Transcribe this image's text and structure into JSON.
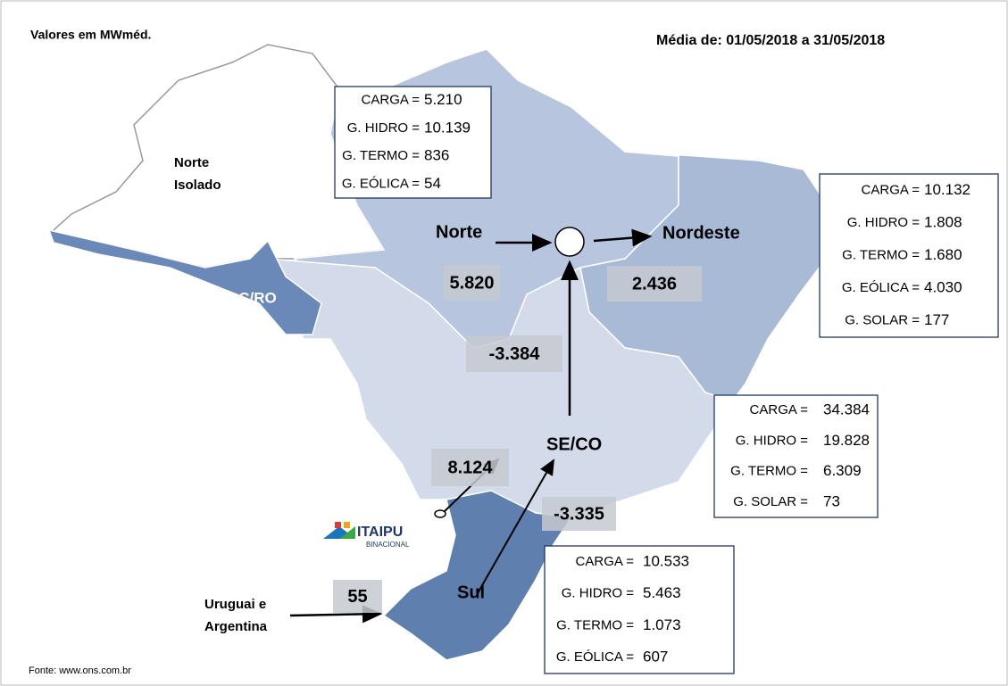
{
  "header": {
    "unit": "Valores em MWméd.",
    "period": "Média de: 01/05/2018 a 31/05/2018"
  },
  "regions": {
    "norte_isolado": [
      "Norte",
      "Isolado"
    ],
    "acro": "AC/RO",
    "norte": "Norte",
    "nordeste": "Nordeste",
    "seco": "SE/CO",
    "sul": "Sul",
    "uruguai": [
      "Uruguai e",
      "Argentina"
    ]
  },
  "flows": {
    "norte_seco": "5.820",
    "nordeste_norte": "2.436",
    "seco_norte": "-3.384",
    "itaipu": "8.124",
    "sul_seco": "-3.335",
    "uruguai": "55"
  },
  "boxes": {
    "norte": [
      {
        "label": "CARGA =",
        "value": "5.210"
      },
      {
        "label": "G. HIDRO =",
        "value": "10.139"
      },
      {
        "label": "G. TERMO =",
        "value": "836"
      },
      {
        "label": "G. EÓLICA =",
        "value": "54"
      }
    ],
    "nordeste": [
      {
        "label": "CARGA =",
        "value": "10.132"
      },
      {
        "label": "G. HIDRO =",
        "value": "1.808"
      },
      {
        "label": "G. TERMO =",
        "value": "1.680"
      },
      {
        "label": "G. EÓLICA =",
        "value": "4.030"
      },
      {
        "label": "G. SOLAR =",
        "value": "177"
      }
    ],
    "seco": [
      {
        "label": "CARGA =",
        "value": "34.384"
      },
      {
        "label": "G. HIDRO =",
        "value": "19.828"
      },
      {
        "label": "G. TERMO =",
        "value": "6.309"
      },
      {
        "label": "G. SOLAR =",
        "value": "73"
      }
    ],
    "sul": [
      {
        "label": "CARGA =",
        "value": "10.533"
      },
      {
        "label": "G. HIDRO =",
        "value": "5.463"
      },
      {
        "label": "G. TERMO =",
        "value": "1.073"
      },
      {
        "label": "G. EÓLICA =",
        "value": "607"
      }
    ]
  },
  "logo": {
    "name": "ITAIPU",
    "sub": "BINACIONAL"
  },
  "source": "Fonte: www.ons.com.br"
}
